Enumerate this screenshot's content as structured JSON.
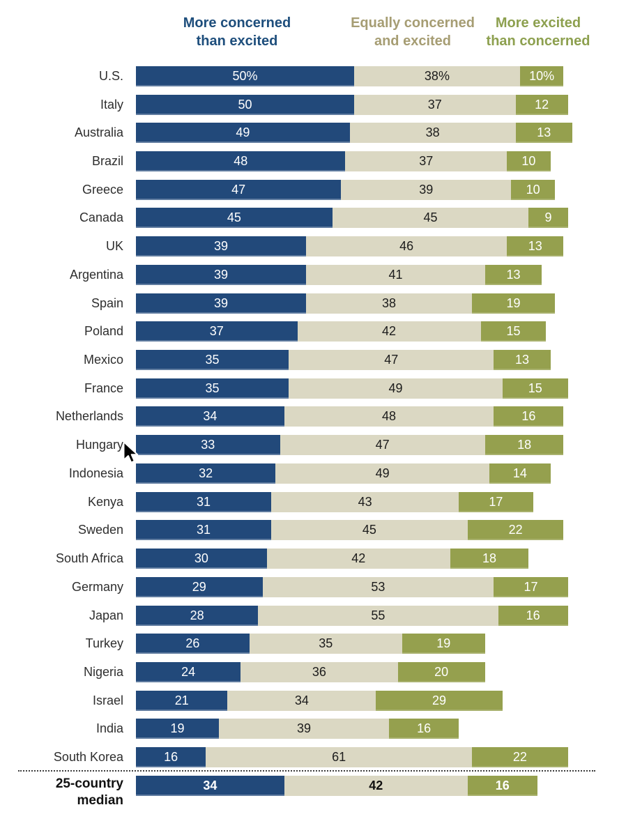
{
  "header": {
    "concerned": {
      "line1": "More concerned",
      "line2": "than excited"
    },
    "equal": {
      "line1": "Equally concerned",
      "line2": "and excited"
    },
    "excited": {
      "line1": "More excited",
      "line2": "than concerned"
    }
  },
  "colors": {
    "concerned_bar": "#22497A",
    "equal_bar": "#DBD8C3",
    "excited_bar": "#95A04E",
    "concerned_header_text": "#1E4E7C",
    "equal_header_text": "#A69D73",
    "excited_header_text": "#8DA04F"
  },
  "cursor": {
    "visible": true,
    "near_label": "Hungary"
  },
  "chart_data": {
    "type": "bar",
    "stacked": true,
    "orientation": "horizontal",
    "unit": "percent",
    "xlim": [
      0,
      100
    ],
    "grid": false,
    "legend_position": "top",
    "series_names": [
      "More concerned than excited",
      "Equally concerned and excited",
      "More excited than concerned"
    ],
    "rows": [
      {
        "label": "U.S.",
        "values": [
          50,
          38,
          10
        ],
        "display": [
          "50%",
          "38%",
          "10%"
        ]
      },
      {
        "label": "Italy",
        "values": [
          50,
          37,
          12
        ]
      },
      {
        "label": "Australia",
        "values": [
          49,
          38,
          13
        ]
      },
      {
        "label": "Brazil",
        "values": [
          48,
          37,
          10
        ]
      },
      {
        "label": "Greece",
        "values": [
          47,
          39,
          10
        ]
      },
      {
        "label": "Canada",
        "values": [
          45,
          45,
          9
        ]
      },
      {
        "label": "UK",
        "values": [
          39,
          46,
          13
        ]
      },
      {
        "label": "Argentina",
        "values": [
          39,
          41,
          13
        ]
      },
      {
        "label": "Spain",
        "values": [
          39,
          38,
          19
        ]
      },
      {
        "label": "Poland",
        "values": [
          37,
          42,
          15
        ]
      },
      {
        "label": "Mexico",
        "values": [
          35,
          47,
          13
        ]
      },
      {
        "label": "France",
        "values": [
          35,
          49,
          15
        ]
      },
      {
        "label": "Netherlands",
        "values": [
          34,
          48,
          16
        ]
      },
      {
        "label": "Hungary",
        "values": [
          33,
          47,
          18
        ]
      },
      {
        "label": "Indonesia",
        "values": [
          32,
          49,
          14
        ]
      },
      {
        "label": "Kenya",
        "values": [
          31,
          43,
          17
        ]
      },
      {
        "label": "Sweden",
        "values": [
          31,
          45,
          22
        ]
      },
      {
        "label": "South Africa",
        "values": [
          30,
          42,
          18
        ]
      },
      {
        "label": "Germany",
        "values": [
          29,
          53,
          17
        ]
      },
      {
        "label": "Japan",
        "values": [
          28,
          55,
          16
        ]
      },
      {
        "label": "Turkey",
        "values": [
          26,
          35,
          19
        ]
      },
      {
        "label": "Nigeria",
        "values": [
          24,
          36,
          20
        ]
      },
      {
        "label": "Israel",
        "values": [
          21,
          34,
          29
        ]
      },
      {
        "label": "India",
        "values": [
          19,
          39,
          16
        ]
      },
      {
        "label": "South Korea",
        "values": [
          16,
          61,
          22
        ]
      },
      {
        "label": "25-country median",
        "label_lines": [
          "25-country",
          "median"
        ],
        "values": [
          34,
          42,
          16
        ],
        "median": true
      }
    ]
  }
}
